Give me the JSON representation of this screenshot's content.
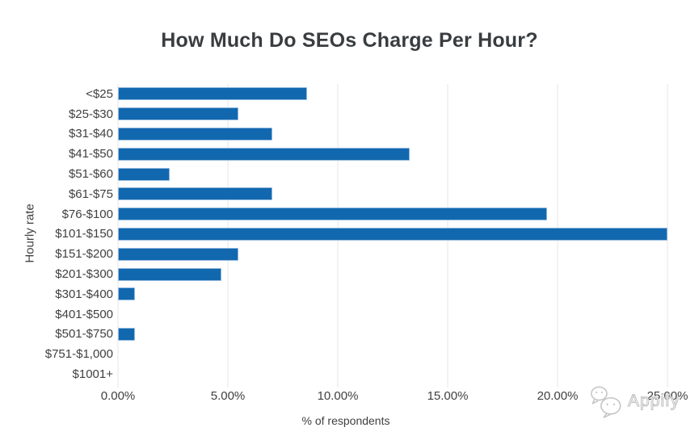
{
  "title": "How Much Do SEOs Charge Per Hour?",
  "chart_data": {
    "type": "bar",
    "orientation": "horizontal",
    "title": "How Much Do SEOs Charge Per Hour?",
    "xlabel": "% of respondents",
    "ylabel": "Hourly rate",
    "categories": [
      "<$25",
      "$25-$30",
      "$31-$40",
      "$41-$50",
      "$51-$60",
      "$61-$75",
      "$76-$100",
      "$101-$150",
      "$151-$200",
      "$201-$300",
      "$301-$400",
      "$401-$500",
      "$501-$750",
      "$751-$1,000",
      "$1001+"
    ],
    "values": [
      8.59,
      5.47,
      7.03,
      13.28,
      2.34,
      7.03,
      19.53,
      25.0,
      5.47,
      4.69,
      0.78,
      0,
      0.78,
      0,
      0
    ],
    "x_ticks": [
      "0.00%",
      "5.00%",
      "10.00%",
      "15.00%",
      "20.00%",
      "25.00%"
    ],
    "xlim": [
      0,
      25
    ],
    "grid": "vertical-only",
    "legend": "none",
    "bar_color": "#1268ae",
    "bar_border_color": "#93b9de"
  },
  "watermark": {
    "label": "Appify",
    "icon": "wechat-bubbles-icon"
  },
  "colors": {
    "background": "#ffffff",
    "title_text": "#393d40",
    "axis_text": "#404040",
    "gridline": "#e4e4e4",
    "watermark": "#bfbfbf"
  }
}
